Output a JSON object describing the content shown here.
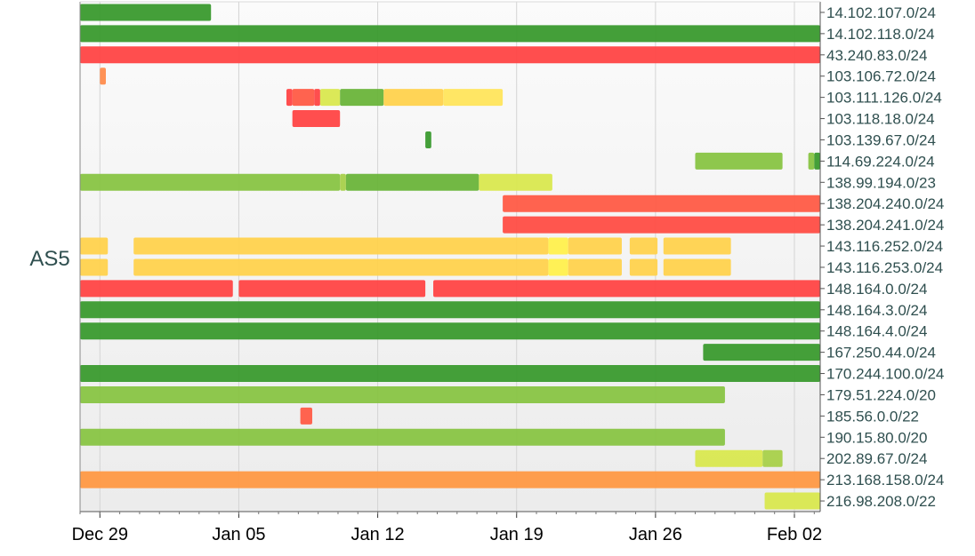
{
  "chart_data": {
    "type": "timeline",
    "title": "",
    "ylabel": "AS5",
    "x_range_days": [
      0,
      37.3
    ],
    "x_ticks": [
      {
        "day": 1,
        "label": "Dec 29"
      },
      {
        "day": 8,
        "label": "Jan 05"
      },
      {
        "day": 15,
        "label": "Jan 12"
      },
      {
        "day": 22,
        "label": "Jan 19"
      },
      {
        "day": 29,
        "label": "Jan 26"
      },
      {
        "day": 36,
        "label": "Feb 02"
      }
    ],
    "rows": [
      {
        "label": "14.102.107.0/24",
        "segments": [
          {
            "start": 0,
            "end": 6.6,
            "color": "#3a9a2e"
          }
        ]
      },
      {
        "label": "14.102.118.0/24",
        "segments": [
          {
            "start": 0,
            "end": 37.3,
            "color": "#3a9a2e"
          }
        ]
      },
      {
        "label": "43.240.83.0/24",
        "segments": [
          {
            "start": 0,
            "end": 37.3,
            "color": "#ff4444"
          }
        ]
      },
      {
        "label": "103.106.72.0/24",
        "segments": [
          {
            "start": 1.0,
            "end": 1.3,
            "color": "#ff8c4d"
          }
        ]
      },
      {
        "label": "103.111.126.0/24",
        "segments": [
          {
            "start": 10.4,
            "end": 10.7,
            "color": "#ff4444"
          },
          {
            "start": 10.7,
            "end": 11.8,
            "color": "#ff5b46"
          },
          {
            "start": 11.8,
            "end": 12.1,
            "color": "#ff4444"
          },
          {
            "start": 12.1,
            "end": 13.1,
            "color": "#d9e84f"
          },
          {
            "start": 13.1,
            "end": 15.3,
            "color": "#6ab43a"
          },
          {
            "start": 15.3,
            "end": 18.3,
            "color": "#ffd24d"
          },
          {
            "start": 18.3,
            "end": 21.3,
            "color": "#ffe55c"
          }
        ]
      },
      {
        "label": "103.118.18.0/24",
        "segments": [
          {
            "start": 10.7,
            "end": 13.1,
            "color": "#ff4444"
          }
        ]
      },
      {
        "label": "103.139.67.0/24",
        "segments": [
          {
            "start": 17.4,
            "end": 17.7,
            "color": "#3a9a2e"
          }
        ]
      },
      {
        "label": "114.69.224.0/24",
        "segments": [
          {
            "start": 31.0,
            "end": 35.4,
            "color": "#88c443"
          },
          {
            "start": 36.7,
            "end": 37.0,
            "color": "#88c443"
          },
          {
            "start": 37.0,
            "end": 37.3,
            "color": "#3a9a2e"
          }
        ]
      },
      {
        "label": "138.99.194.0/23",
        "segments": [
          {
            "start": 0,
            "end": 13.1,
            "color": "#88c443"
          },
          {
            "start": 13.1,
            "end": 13.4,
            "color": "#a8d04a"
          },
          {
            "start": 13.4,
            "end": 20.1,
            "color": "#6ab43a"
          },
          {
            "start": 20.1,
            "end": 23.8,
            "color": "#d9e84f"
          }
        ]
      },
      {
        "label": "138.204.240.0/24",
        "segments": [
          {
            "start": 21.3,
            "end": 37.3,
            "color": "#ff5b46"
          }
        ]
      },
      {
        "label": "138.204.241.0/24",
        "segments": [
          {
            "start": 21.3,
            "end": 37.3,
            "color": "#ff4d44"
          }
        ]
      },
      {
        "label": "143.116.252.0/24",
        "segments": [
          {
            "start": 0,
            "end": 1.4,
            "color": "#ffd24d"
          },
          {
            "start": 2.7,
            "end": 23.6,
            "color": "#ffd24d"
          },
          {
            "start": 23.6,
            "end": 24.6,
            "color": "#fff04d"
          },
          {
            "start": 24.6,
            "end": 27.3,
            "color": "#ffd24d"
          },
          {
            "start": 27.7,
            "end": 29.1,
            "color": "#ffd24d"
          },
          {
            "start": 29.4,
            "end": 32.8,
            "color": "#ffd24d"
          }
        ]
      },
      {
        "label": "143.116.253.0/24",
        "segments": [
          {
            "start": 0,
            "end": 1.4,
            "color": "#ffd24d"
          },
          {
            "start": 2.7,
            "end": 23.6,
            "color": "#ffd24d"
          },
          {
            "start": 23.6,
            "end": 24.6,
            "color": "#fff04d"
          },
          {
            "start": 24.6,
            "end": 27.3,
            "color": "#ffd24d"
          },
          {
            "start": 27.7,
            "end": 29.1,
            "color": "#ffd24d"
          },
          {
            "start": 29.4,
            "end": 32.8,
            "color": "#ffd24d"
          }
        ]
      },
      {
        "label": "148.164.0.0/24",
        "segments": [
          {
            "start": 0,
            "end": 7.7,
            "color": "#ff4444"
          },
          {
            "start": 8.0,
            "end": 17.4,
            "color": "#ff4444"
          },
          {
            "start": 17.8,
            "end": 37.3,
            "color": "#ff4444"
          }
        ]
      },
      {
        "label": "148.164.3.0/24",
        "segments": [
          {
            "start": 0,
            "end": 37.3,
            "color": "#3a9a2e"
          }
        ]
      },
      {
        "label": "148.164.4.0/24",
        "segments": [
          {
            "start": 0,
            "end": 37.3,
            "color": "#3a9a2e"
          }
        ]
      },
      {
        "label": "167.250.44.0/24",
        "segments": [
          {
            "start": 31.4,
            "end": 37.3,
            "color": "#3a9a2e"
          }
        ]
      },
      {
        "label": "170.244.100.0/24",
        "segments": [
          {
            "start": 0,
            "end": 37.3,
            "color": "#3a9a2e"
          }
        ]
      },
      {
        "label": "179.51.224.0/20",
        "segments": [
          {
            "start": 0,
            "end": 32.5,
            "color": "#88c443"
          }
        ]
      },
      {
        "label": "185.56.0.0/22",
        "segments": [
          {
            "start": 11.1,
            "end": 11.7,
            "color": "#ff5b46"
          }
        ]
      },
      {
        "label": "190.15.80.0/20",
        "segments": [
          {
            "start": 0,
            "end": 32.5,
            "color": "#88c443"
          }
        ]
      },
      {
        "label": "202.89.67.0/24",
        "segments": [
          {
            "start": 31.0,
            "end": 34.4,
            "color": "#d9e84f"
          },
          {
            "start": 34.4,
            "end": 35.4,
            "color": "#a8d04a"
          }
        ]
      },
      {
        "label": "213.168.158.0/24",
        "segments": [
          {
            "start": 0,
            "end": 37.3,
            "color": "#ff9944"
          }
        ]
      },
      {
        "label": "216.98.208.0/22",
        "segments": [
          {
            "start": 34.5,
            "end": 37.3,
            "color": "#d9e84f"
          }
        ]
      }
    ],
    "grid": true
  }
}
